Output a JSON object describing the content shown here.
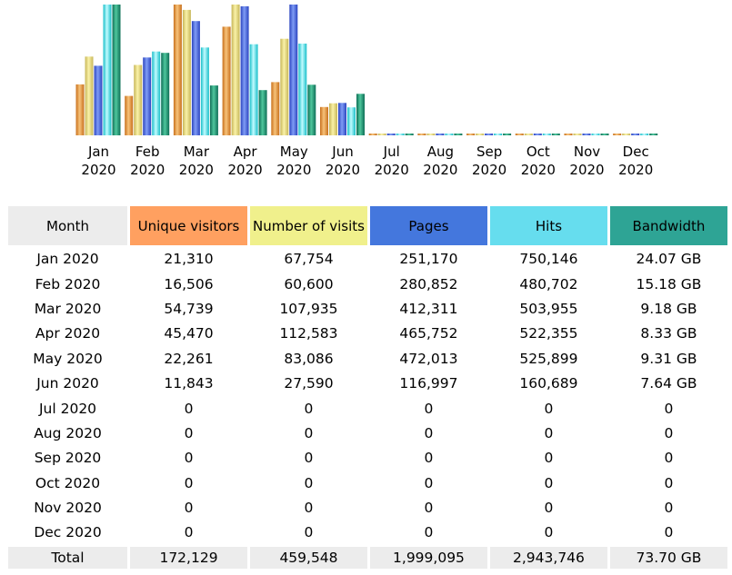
{
  "chart_data": {
    "type": "bar",
    "categories": [
      {
        "month": "Jan",
        "year": "2020"
      },
      {
        "month": "Feb",
        "year": "2020"
      },
      {
        "month": "Mar",
        "year": "2020"
      },
      {
        "month": "Apr",
        "year": "2020"
      },
      {
        "month": "May",
        "year": "2020"
      },
      {
        "month": "Jun",
        "year": "2020"
      },
      {
        "month": "Jul",
        "year": "2020"
      },
      {
        "month": "Aug",
        "year": "2020"
      },
      {
        "month": "Sep",
        "year": "2020"
      },
      {
        "month": "Oct",
        "year": "2020"
      },
      {
        "month": "Nov",
        "year": "2020"
      },
      {
        "month": "Dec",
        "year": "2020"
      }
    ],
    "series": [
      {
        "key": "unique",
        "values": [
          21310,
          16506,
          54739,
          45470,
          22261,
          11843,
          0,
          0,
          0,
          0,
          0,
          0
        ]
      },
      {
        "key": "visits",
        "values": [
          67754,
          60600,
          107935,
          112583,
          83086,
          27590,
          0,
          0,
          0,
          0,
          0,
          0
        ]
      },
      {
        "key": "pages",
        "values": [
          251170,
          280852,
          412311,
          465752,
          472013,
          116997,
          0,
          0,
          0,
          0,
          0,
          0
        ]
      },
      {
        "key": "hits",
        "values": [
          750146,
          480702,
          503955,
          522355,
          525899,
          160689,
          0,
          0,
          0,
          0,
          0,
          0
        ]
      },
      {
        "key": "bandwidth",
        "values": [
          24.07,
          15.18,
          9.18,
          8.33,
          9.31,
          7.64,
          0,
          0,
          0,
          0,
          0,
          0
        ]
      }
    ],
    "colors": {
      "unique": [
        "#f7c27a",
        "#c8701c"
      ],
      "visits": [
        "#faf2a8",
        "#c7b658"
      ],
      "pages": [
        "#7f9cf5",
        "#2b44c0"
      ],
      "hits": [
        "#c2fbff",
        "#18bfc9"
      ],
      "bandwidth": [
        "#4fc79d",
        "#0e6e56"
      ]
    }
  },
  "table": {
    "headers": {
      "month": "Month",
      "unique": "Unique visitors",
      "visits": "Number of visits",
      "pages": "Pages",
      "hits": "Hits",
      "bandwidth": "Bandwidth"
    },
    "rows": [
      {
        "month": "Jan 2020",
        "unique": "21,310",
        "visits": "67,754",
        "pages": "251,170",
        "hits": "750,146",
        "bandwidth": "24.07 GB"
      },
      {
        "month": "Feb 2020",
        "unique": "16,506",
        "visits": "60,600",
        "pages": "280,852",
        "hits": "480,702",
        "bandwidth": "15.18 GB"
      },
      {
        "month": "Mar 2020",
        "unique": "54,739",
        "visits": "107,935",
        "pages": "412,311",
        "hits": "503,955",
        "bandwidth": "9.18 GB"
      },
      {
        "month": "Apr 2020",
        "unique": "45,470",
        "visits": "112,583",
        "pages": "465,752",
        "hits": "522,355",
        "bandwidth": "8.33 GB"
      },
      {
        "month": "May 2020",
        "unique": "22,261",
        "visits": "83,086",
        "pages": "472,013",
        "hits": "525,899",
        "bandwidth": "9.31 GB"
      },
      {
        "month": "Jun 2020",
        "unique": "11,843",
        "visits": "27,590",
        "pages": "116,997",
        "hits": "160,689",
        "bandwidth": "7.64 GB"
      },
      {
        "month": "Jul 2020",
        "unique": "0",
        "visits": "0",
        "pages": "0",
        "hits": "0",
        "bandwidth": "0"
      },
      {
        "month": "Aug 2020",
        "unique": "0",
        "visits": "0",
        "pages": "0",
        "hits": "0",
        "bandwidth": "0"
      },
      {
        "month": "Sep 2020",
        "unique": "0",
        "visits": "0",
        "pages": "0",
        "hits": "0",
        "bandwidth": "0"
      },
      {
        "month": "Oct 2020",
        "unique": "0",
        "visits": "0",
        "pages": "0",
        "hits": "0",
        "bandwidth": "0"
      },
      {
        "month": "Nov 2020",
        "unique": "0",
        "visits": "0",
        "pages": "0",
        "hits": "0",
        "bandwidth": "0"
      },
      {
        "month": "Dec 2020",
        "unique": "0",
        "visits": "0",
        "pages": "0",
        "hits": "0",
        "bandwidth": "0"
      }
    ],
    "total": {
      "label": "Total",
      "unique": "172,129",
      "visits": "459,548",
      "pages": "1,999,095",
      "hits": "2,943,746",
      "bandwidth": "73.70 GB"
    }
  }
}
